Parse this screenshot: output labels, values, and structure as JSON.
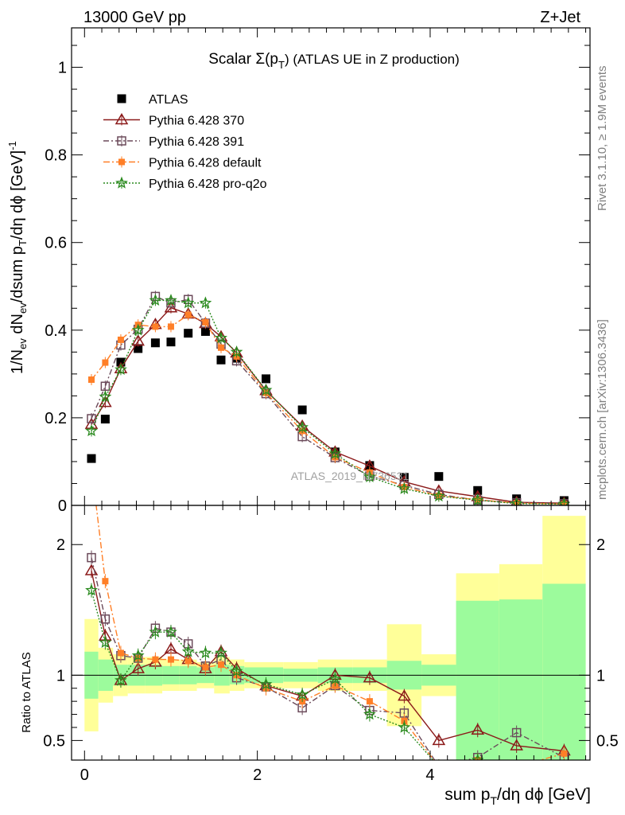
{
  "header": {
    "left": "13000 GeV pp",
    "right": "Z+Jet"
  },
  "side_labels": {
    "rivet": "Rivet 3.1.10, ≥ 1.9M events",
    "mcplots": "mcplots.cern.ch [arXiv:1306.3436]"
  },
  "watermark": "ATLAS_2019_I1736531",
  "chart_data": {
    "type": "scatter",
    "title_main": "Scalar Σ(p",
    "title_sub": "T",
    "title_tail": ") (ATLAS UE in Z production)",
    "xlabel": "sum p",
    "xlabel_sub": "T",
    "xlabel_tail": "/dη dϕ [GeV]",
    "ylabel": "1/N",
    "ylabel_sub1": "ev",
    "ylabel_mid": " dN",
    "ylabel_sub2": "ev",
    "ylabel_mid2": "/dsum p",
    "ylabel_sub3": "T",
    "ylabel_tail": "/dη dϕ  [GeV]",
    "ylabel_sup": "-1",
    "ratio_ylabel": "Ratio to ATLAS",
    "xlim": [
      -0.15,
      5.85
    ],
    "ylim_main": [
      0,
      1.09
    ],
    "ylim_ratio": [
      0.35,
      2.3
    ],
    "x_ticks": [
      0,
      2,
      4
    ],
    "y_ticks_main": [
      0,
      0.2,
      0.4,
      0.6,
      0.8,
      1
    ],
    "y_tick_labels_main": [
      "0",
      "0.2",
      "0.4",
      "0.6",
      "0.8",
      "1"
    ],
    "y_ticks_ratio": [
      0.5,
      1,
      2
    ],
    "y_tick_labels_ratio": [
      "0.5",
      "1",
      "2"
    ],
    "legend_position": "top-left",
    "x": [
      0.08,
      0.24,
      0.42,
      0.62,
      0.82,
      1.0,
      1.2,
      1.4,
      1.58,
      1.76,
      2.1,
      2.52,
      2.9,
      3.3,
      3.7,
      4.1,
      4.55,
      5.0,
      5.55
    ],
    "bins": [
      [
        0.0,
        0.16
      ],
      [
        0.16,
        0.33
      ],
      [
        0.33,
        0.5
      ],
      [
        0.5,
        0.7
      ],
      [
        0.7,
        0.9
      ],
      [
        0.9,
        1.1
      ],
      [
        1.1,
        1.3
      ],
      [
        1.3,
        1.5
      ],
      [
        1.5,
        1.68
      ],
      [
        1.68,
        1.85
      ],
      [
        1.85,
        2.3
      ],
      [
        2.3,
        2.7
      ],
      [
        2.7,
        3.1
      ],
      [
        3.1,
        3.5
      ],
      [
        3.5,
        3.9
      ],
      [
        3.9,
        4.3
      ],
      [
        4.3,
        4.8
      ],
      [
        4.8,
        5.3
      ],
      [
        5.3,
        5.8
      ]
    ],
    "band_green_lo": [
      0.82,
      0.88,
      0.92,
      0.92,
      0.92,
      0.93,
      0.93,
      0.94,
      0.92,
      0.93,
      0.94,
      0.95,
      0.94,
      0.94,
      0.89,
      0.92,
      0.35,
      0.35,
      0.35
    ],
    "band_green_hi": [
      1.18,
      1.12,
      1.08,
      1.08,
      1.08,
      1.07,
      1.07,
      1.06,
      1.08,
      1.07,
      1.06,
      1.05,
      1.06,
      1.06,
      1.11,
      1.08,
      1.57,
      1.58,
      1.7
    ],
    "band_yellow_lo": [
      0.57,
      0.79,
      0.84,
      0.86,
      0.86,
      0.88,
      0.88,
      0.9,
      0.86,
      0.88,
      0.9,
      0.9,
      0.88,
      0.88,
      0.61,
      0.84,
      0.35,
      0.35,
      0.35
    ],
    "band_yellow_hi": [
      1.43,
      1.21,
      1.16,
      1.14,
      1.14,
      1.12,
      1.12,
      1.1,
      1.14,
      1.12,
      1.1,
      1.1,
      1.12,
      1.12,
      1.39,
      1.16,
      1.78,
      1.85,
      2.22
    ],
    "series": [
      {
        "name": "ATLAS",
        "color": "#000000",
        "marker": "square-filled",
        "dash": "",
        "values": [
          0.107,
          0.197,
          0.327,
          0.358,
          0.371,
          0.373,
          0.393,
          0.397,
          0.332,
          0.336,
          0.289,
          0.218,
          0.122,
          0.091,
          0.064,
          0.066,
          0.034,
          0.015,
          0.011
        ],
        "ratio": [
          1,
          1,
          1,
          1,
          1,
          1,
          1,
          1,
          1,
          1,
          1,
          1,
          1,
          1,
          1,
          1,
          1,
          1,
          1
        ]
      },
      {
        "name": "Pythia 6.428 370",
        "color": "#8b1a1a",
        "marker": "triangle-open",
        "dash": "",
        "values": [
          0.185,
          0.235,
          0.312,
          0.375,
          0.413,
          0.451,
          0.437,
          0.415,
          0.385,
          0.348,
          0.262,
          0.181,
          0.122,
          0.09,
          0.054,
          0.033,
          0.02,
          0.007,
          0.005
        ],
        "ratio": [
          1.8,
          1.3,
          0.96,
          1.05,
          1.1,
          1.2,
          1.12,
          1.05,
          1.18,
          1.05,
          0.92,
          0.84,
          1.0,
          0.98,
          0.84,
          0.5,
          0.58,
          0.46,
          0.42
        ]
      },
      {
        "name": "Pythia 6.428 391",
        "color": "#6b4a5a",
        "marker": "square-open",
        "dash": "7,3,2,3",
        "values": [
          0.198,
          0.272,
          0.366,
          0.402,
          0.477,
          0.462,
          0.47,
          0.416,
          0.368,
          0.33,
          0.255,
          0.157,
          0.109,
          0.067,
          0.046,
          0.025,
          0.012,
          0.006,
          0.004
        ],
        "ratio": [
          1.9,
          1.43,
          1.15,
          1.13,
          1.36,
          1.33,
          1.24,
          1.07,
          1.12,
          0.98,
          0.91,
          0.75,
          0.92,
          0.73,
          0.71,
          0.3,
          0.37,
          0.56,
          0.37
        ]
      },
      {
        "name": "Pythia 6.428 default",
        "color": "#ff7f27",
        "marker": "square-filled",
        "dash": "8,3,2,3",
        "values": [
          0.287,
          0.326,
          0.378,
          0.412,
          0.408,
          0.408,
          0.435,
          0.418,
          0.36,
          0.34,
          0.257,
          0.17,
          0.11,
          0.075,
          0.042,
          0.022,
          0.013,
          0.005,
          0.003
        ],
        "ratio": [
          2.6,
          1.72,
          1.17,
          1.13,
          1.12,
          1.12,
          1.11,
          1.06,
          1.08,
          1.0,
          0.9,
          0.8,
          0.92,
          0.8,
          0.65,
          0.3,
          0.35,
          0.3,
          0.4
        ]
      },
      {
        "name": "Pythia 6.428 pro-q2o",
        "color": "#2a8a1e",
        "marker": "star",
        "dash": "2,2",
        "values": [
          0.17,
          0.248,
          0.31,
          0.4,
          0.468,
          0.468,
          0.462,
          0.462,
          0.382,
          0.35,
          0.263,
          0.178,
          0.118,
          0.065,
          0.038,
          0.021,
          0.012,
          0.004,
          0.003
        ],
        "ratio": [
          1.65,
          1.25,
          0.96,
          1.15,
          1.33,
          1.33,
          1.18,
          1.17,
          1.17,
          1.03,
          0.93,
          0.85,
          0.97,
          0.7,
          0.6,
          0.3,
          0.35,
          0.3,
          0.3
        ]
      }
    ]
  }
}
